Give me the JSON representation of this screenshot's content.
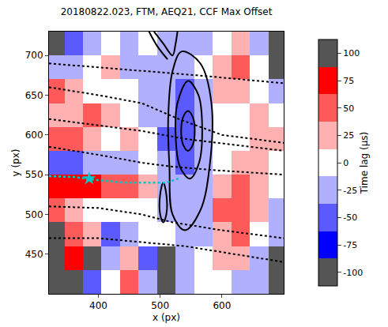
{
  "chart_data": {
    "type": "heatmap",
    "title": "20180822.023, FTM, AEQ21, CCF Max Offset",
    "x_label": "x (px)",
    "y_label": "y (px)",
    "xlim": [
      320,
      700
    ],
    "ylim": [
      400,
      730
    ],
    "xticks": [
      400,
      500,
      600
    ],
    "yticks": [
      450,
      500,
      550,
      600,
      650,
      700
    ],
    "x": [
      330,
      360,
      390,
      420,
      450,
      480,
      510,
      540,
      570,
      600,
      630,
      660,
      690
    ],
    "y": [
      415,
      445,
      475,
      505,
      535,
      565,
      595,
      625,
      655,
      685,
      715
    ],
    "z": [
      [
        -100,
        -100,
        -50,
        0,
        50,
        -25,
        -100,
        -25,
        0,
        0,
        -25,
        -25,
        -100
      ],
      [
        -100,
        75,
        -100,
        -25,
        25,
        -50,
        -100,
        -25,
        0,
        25,
        25,
        -25,
        -100
      ],
      [
        -100,
        50,
        25,
        -50,
        -25,
        0,
        0,
        -25,
        -25,
        25,
        50,
        0,
        -25
      ],
      [
        50,
        25,
        0,
        0,
        0,
        0,
        -25,
        -25,
        -25,
        50,
        50,
        25,
        -25
      ],
      [
        75,
        75,
        75,
        50,
        50,
        25,
        -25,
        -25,
        -25,
        25,
        50,
        25,
        0
      ],
      [
        -50,
        -50,
        -25,
        -25,
        -25,
        0,
        -25,
        -50,
        -25,
        0,
        25,
        25,
        0
      ],
      [
        50,
        50,
        25,
        0,
        25,
        0,
        -50,
        -50,
        -25,
        0,
        0,
        25,
        25
      ],
      [
        25,
        25,
        50,
        25,
        0,
        -25,
        -25,
        -50,
        -25,
        0,
        0,
        25,
        0
      ],
      [
        50,
        25,
        0,
        0,
        0,
        -25,
        -25,
        -50,
        -25,
        25,
        25,
        0,
        -25
      ],
      [
        -25,
        -25,
        0,
        25,
        -25,
        -25,
        -25,
        -25,
        0,
        25,
        50,
        0,
        -100
      ],
      [
        -100,
        -50,
        -25,
        0,
        -25,
        0,
        -25,
        -25,
        -25,
        0,
        25,
        -25,
        -100
      ]
    ],
    "colorbar": {
      "title": "Time lag (μs)",
      "range": [
        -112.5,
        112.5
      ],
      "ticks": [
        -100,
        -75,
        -50,
        -25,
        0,
        25,
        50,
        75,
        100
      ]
    },
    "contours": [
      {
        "x": [
          545,
          553,
          556,
          553,
          545,
          537,
          534,
          537,
          545
        ],
        "y": [
          630,
          622,
          605,
          588,
          580,
          588,
          605,
          622,
          630
        ]
      },
      {
        "x": [
          545,
          562,
          568,
          563,
          548,
          532,
          525,
          528,
          545
        ],
        "y": [
          668,
          650,
          610,
          565,
          545,
          560,
          600,
          640,
          668
        ]
      },
      {
        "x": [
          535,
          565,
          583,
          580,
          565,
          540,
          520,
          515,
          513,
          520,
          535
        ],
        "y": [
          705,
          690,
          640,
          560,
          505,
          480,
          500,
          560,
          620,
          680,
          705
        ]
      },
      {
        "x": [
          505,
          510,
          510,
          505,
          500,
          500,
          505
        ],
        "y": [
          540,
          525,
          500,
          490,
          500,
          525,
          540
        ]
      },
      {
        "x": [
          490,
          505,
          520,
          525,
          528
        ],
        "y": [
          730,
          715,
          700,
          715,
          730
        ]
      },
      {
        "x": [
          482,
          495,
          512
        ],
        "y": [
          730,
          712,
          695
        ]
      }
    ],
    "streamlines": [
      {
        "x": [
          320,
          400,
          470,
          520,
          600,
          700
        ],
        "y": [
          585,
          575,
          565,
          560,
          555,
          550
        ]
      },
      {
        "x": [
          320,
          400,
          470,
          520,
          600,
          700
        ],
        "y": [
          510,
          508,
          500,
          490,
          480,
          470
        ]
      },
      {
        "x": [
          320,
          400,
          470,
          540,
          620,
          700
        ],
        "y": [
          470,
          470,
          465,
          460,
          450,
          440
        ]
      },
      {
        "x": [
          320,
          400,
          470,
          530,
          600,
          700
        ],
        "y": [
          660,
          650,
          640,
          620,
          600,
          590
        ]
      },
      {
        "x": [
          320,
          400,
          470,
          560,
          700
        ],
        "y": [
          690,
          685,
          680,
          675,
          665
        ]
      },
      {
        "x": [
          320,
          400,
          470,
          540,
          700
        ],
        "y": [
          620,
          612,
          605,
          595,
          580
        ]
      }
    ],
    "track": {
      "x": [
        320,
        360,
        400,
        440,
        480,
        510,
        530
      ],
      "y": [
        548,
        547,
        543,
        540,
        540,
        540,
        545
      ],
      "color": "#00c8c8",
      "line_style": "dotted"
    },
    "point": {
      "x": [
        385
      ],
      "y": [
        545
      ],
      "color": "#00c8c8",
      "marker": "star"
    }
  }
}
